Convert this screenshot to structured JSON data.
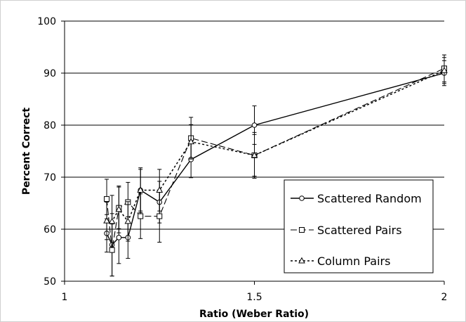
{
  "chart_data": {
    "type": "line",
    "xlabel": "Ratio (Weber Ratio)",
    "ylabel": "Percent Correct",
    "xlim": [
      1,
      2
    ],
    "ylim": [
      50,
      100
    ],
    "x_ticks": [
      1,
      1.5,
      2
    ],
    "x_tick_labels": [
      "1",
      "1.5",
      "2"
    ],
    "y_ticks": [
      50,
      60,
      70,
      80,
      90,
      100
    ],
    "y_tick_labels": [
      "50",
      "60",
      "70",
      "80",
      "90",
      "100"
    ],
    "grid": "horizontal",
    "legend_position": "bottom-right",
    "series": [
      {
        "name": "Scattered Random",
        "marker": "circle",
        "line_style": "solid",
        "points": [
          {
            "x": 1.111,
            "y": 59.2,
            "err": 3.6
          },
          {
            "x": 1.125,
            "y": 57.0,
            "err": 6.0
          },
          {
            "x": 1.143,
            "y": 58.4,
            "err": 5.0
          },
          {
            "x": 1.167,
            "y": 58.4,
            "err": 4.0
          },
          {
            "x": 1.2,
            "y": 67.5,
            "err": 4.3
          },
          {
            "x": 1.25,
            "y": 65.2,
            "err": 4.0
          },
          {
            "x": 1.333,
            "y": 73.4,
            "err": 3.5
          },
          {
            "x": 1.5,
            "y": 80.0,
            "err": 3.7
          },
          {
            "x": 2.0,
            "y": 90.0,
            "err": 2.4
          }
        ]
      },
      {
        "name": "Scattered Pairs",
        "marker": "square",
        "line_style": "long-dash",
        "points": [
          {
            "x": 1.111,
            "y": 65.8,
            "err": 3.8
          },
          {
            "x": 1.125,
            "y": 56.0,
            "err": 5.0
          },
          {
            "x": 1.143,
            "y": 64.1,
            "err": 4.0
          },
          {
            "x": 1.167,
            "y": 65.2,
            "err": 3.8
          },
          {
            "x": 1.2,
            "y": 62.5,
            "err": 4.3
          },
          {
            "x": 1.25,
            "y": 62.5,
            "err": 5.0
          },
          {
            "x": 1.333,
            "y": 77.5,
            "err": 4.0
          },
          {
            "x": 1.5,
            "y": 74.2,
            "err": 4.4
          },
          {
            "x": 2.0,
            "y": 90.9,
            "err": 2.6
          }
        ]
      },
      {
        "name": "Column Pairs",
        "marker": "triangle",
        "line_style": "dotted",
        "points": [
          {
            "x": 1.111,
            "y": 61.6,
            "err": 3.6
          },
          {
            "x": 1.125,
            "y": 61.5,
            "err": 5.0
          },
          {
            "x": 1.143,
            "y": 63.8,
            "err": 4.5
          },
          {
            "x": 1.167,
            "y": 61.5,
            "err": 3.8
          },
          {
            "x": 1.2,
            "y": 67.5,
            "err": 4.0
          },
          {
            "x": 1.25,
            "y": 67.5,
            "err": 4.0
          },
          {
            "x": 1.333,
            "y": 76.8,
            "err": 3.3
          },
          {
            "x": 1.5,
            "y": 74.2,
            "err": 4.0
          },
          {
            "x": 2.0,
            "y": 90.5,
            "err": 2.5
          }
        ]
      }
    ]
  }
}
